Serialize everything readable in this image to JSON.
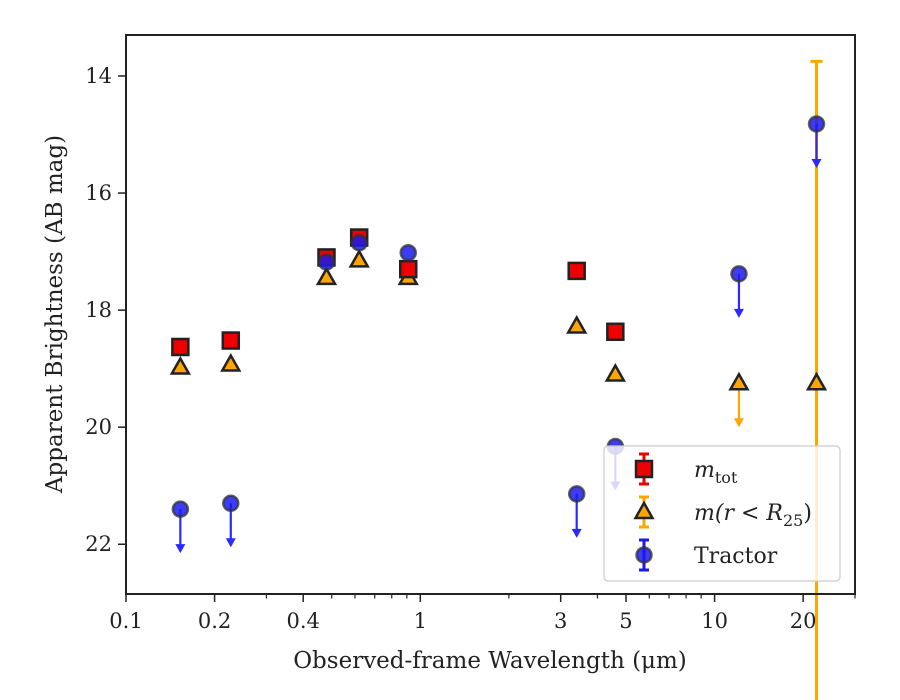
{
  "chart_data": {
    "type": "scatter",
    "xlabel": "Observed-frame Wavelength (μm)",
    "ylabel": "Apparent Brightness (AB mag)",
    "x_scale": "log",
    "xlim": [
      0.1,
      30
    ],
    "ylim": [
      22.85,
      13.3
    ],
    "y_inverted": true,
    "x_ticks": [
      {
        "value": 0.1,
        "label": "0.1"
      },
      {
        "value": 0.2,
        "label": "0.2"
      },
      {
        "value": 0.4,
        "label": "0.4"
      },
      {
        "value": 1,
        "label": "1"
      },
      {
        "value": 3,
        "label": "3"
      },
      {
        "value": 5,
        "label": "5"
      },
      {
        "value": 10,
        "label": "10"
      },
      {
        "value": 20,
        "label": "20"
      }
    ],
    "y_ticks": [
      {
        "value": 14,
        "label": "14"
      },
      {
        "value": 16,
        "label": "16"
      },
      {
        "value": 18,
        "label": "18"
      },
      {
        "value": 20,
        "label": "20"
      },
      {
        "value": 22,
        "label": "22"
      }
    ],
    "grid": false,
    "legend_position": "lower-right",
    "series": [
      {
        "key": "mtot",
        "name": "m_tot",
        "legend_main": "m",
        "legend_sub": "tot",
        "marker": "square",
        "color": "#ee0000",
        "edge_color": "#222222",
        "points": [
          {
            "x": 0.153,
            "y": 18.63
          },
          {
            "x": 0.227,
            "y": 18.52
          },
          {
            "x": 0.48,
            "y": 17.1
          },
          {
            "x": 0.62,
            "y": 16.76
          },
          {
            "x": 0.91,
            "y": 17.3
          },
          {
            "x": 3.4,
            "y": 17.33
          },
          {
            "x": 4.6,
            "y": 18.37
          }
        ]
      },
      {
        "key": "mr25",
        "name": "m(r < R25)",
        "legend_main": "m(r < R",
        "legend_sub": "25",
        "legend_end": ")",
        "marker": "triangle",
        "color": "#ffa500",
        "edge_color": "#222222",
        "points": [
          {
            "x": 0.153,
            "y": 18.98
          },
          {
            "x": 0.227,
            "y": 18.93
          },
          {
            "x": 0.48,
            "y": 17.45
          },
          {
            "x": 0.62,
            "y": 17.15
          },
          {
            "x": 0.91,
            "y": 17.45
          },
          {
            "x": 3.4,
            "y": 18.28
          },
          {
            "x": 4.6,
            "y": 19.1
          },
          {
            "x": 12.1,
            "y": 19.25,
            "upper_limit": true
          },
          {
            "x": 22.2,
            "y": 19.25,
            "err": 5.5
          }
        ]
      },
      {
        "key": "tractor",
        "name": "Tractor",
        "legend_main": "Tractor",
        "marker": "circle",
        "color": "#1a1aee",
        "edge_color": "#333333",
        "points": [
          {
            "x": 0.153,
            "y": 21.4,
            "upper_limit": true
          },
          {
            "x": 0.227,
            "y": 21.3,
            "upper_limit": true
          },
          {
            "x": 0.48,
            "y": 17.18
          },
          {
            "x": 0.62,
            "y": 16.85
          },
          {
            "x": 0.91,
            "y": 17.02
          },
          {
            "x": 3.4,
            "y": 21.14,
            "upper_limit": true
          },
          {
            "x": 4.6,
            "y": 20.33,
            "upper_limit": true
          },
          {
            "x": 12.1,
            "y": 17.38,
            "upper_limit": true
          },
          {
            "x": 22.2,
            "y": 14.82,
            "upper_limit": true
          }
        ]
      }
    ]
  }
}
